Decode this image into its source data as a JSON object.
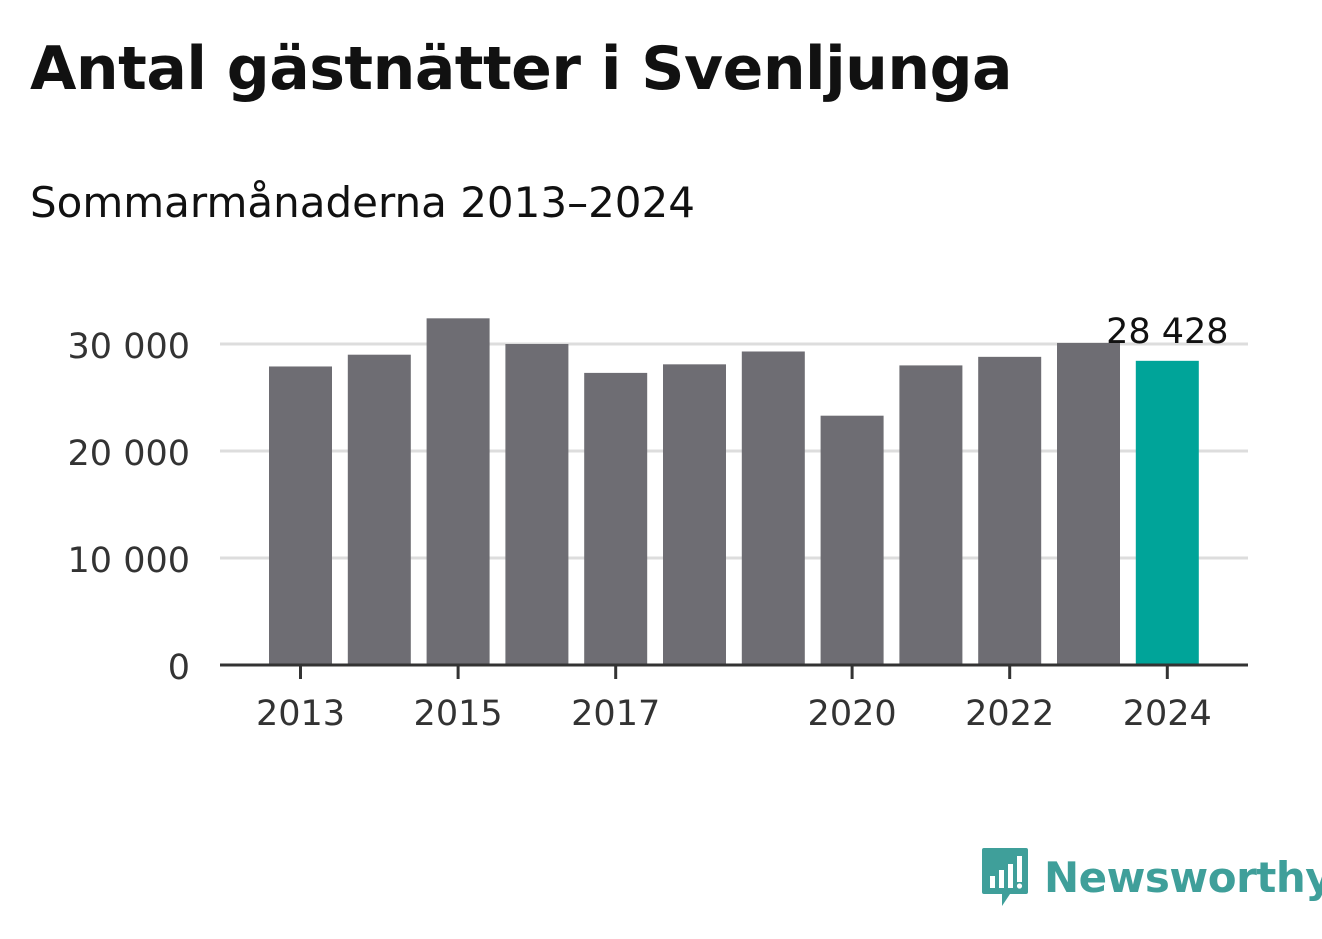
{
  "title": "Antal gästnätter i Svenljunga",
  "subtitle": "Sommarmånaderna 2013–2024",
  "brand": {
    "name": "Newsworthy",
    "icon": "newsworthy-logo-icon",
    "color": "#3f9f9a"
  },
  "colors": {
    "bar": "#6e6d73",
    "highlight": "#00a499",
    "grid": "#dddddd",
    "axis": "#333333",
    "label": "#333333"
  },
  "chart_data": {
    "type": "bar",
    "categories": [
      "2013",
      "2014",
      "2015",
      "2016",
      "2017",
      "2018",
      "2019",
      "2020",
      "2021",
      "2022",
      "2023",
      "2024"
    ],
    "values": [
      27900,
      29000,
      32400,
      30000,
      27300,
      28100,
      29300,
      23300,
      28000,
      28800,
      30100,
      28428
    ],
    "x_tick_labels": [
      "2013",
      "",
      "2015",
      "",
      "2017",
      "",
      "",
      "2020",
      "",
      "2022",
      "",
      "2024"
    ],
    "highlight_index": 11,
    "highlight_label": "28 428",
    "y_ticks": [
      0,
      10000,
      20000,
      30000
    ],
    "y_tick_labels": [
      "0",
      "10 000",
      "20 000",
      "30 000"
    ],
    "ylim": [
      0,
      35000
    ],
    "grid": true
  }
}
